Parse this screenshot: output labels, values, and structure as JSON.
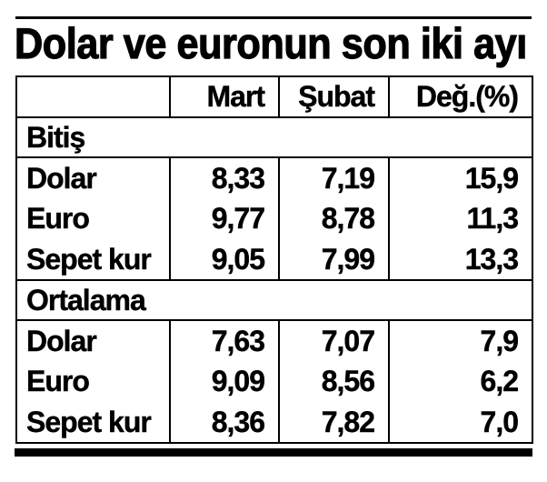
{
  "title": "Dolar ve euronun son iki ayı",
  "colors": {
    "text": "#000000",
    "background": "#ffffff",
    "border": "#000000"
  },
  "table": {
    "columns": [
      "",
      "Mart",
      "Şubat",
      "Değ.(%)"
    ],
    "sections": [
      {
        "label": "Bitiş",
        "rows": [
          {
            "label": "Dolar",
            "mart": "8,33",
            "subat": "7,19",
            "deg": "15,9"
          },
          {
            "label": "Euro",
            "mart": "9,77",
            "subat": "8,78",
            "deg": "11,3"
          },
          {
            "label": "Sepet kur",
            "mart": "9,05",
            "subat": "7,99",
            "deg": "13,3"
          }
        ]
      },
      {
        "label": "Ortalama",
        "rows": [
          {
            "label": "Dolar",
            "mart": "7,63",
            "subat": "7,07",
            "deg": "7,9"
          },
          {
            "label": "Euro",
            "mart": "9,09",
            "subat": "8,56",
            "deg": "6,2"
          },
          {
            "label": "Sepet kur",
            "mart": "8,36",
            "subat": "7,82",
            "deg": "7,0"
          }
        ]
      }
    ]
  },
  "chart_data": {
    "type": "table",
    "title": "Dolar ve euronun son iki ayı",
    "columns": [
      "Mart",
      "Şubat",
      "Değ.(%)"
    ],
    "sections": [
      {
        "name": "Bitiş",
        "rows": [
          [
            "Dolar",
            8.33,
            7.19,
            15.9
          ],
          [
            "Euro",
            9.77,
            8.78,
            11.3
          ],
          [
            "Sepet kur",
            9.05,
            7.99,
            13.3
          ]
        ]
      },
      {
        "name": "Ortalama",
        "rows": [
          [
            "Dolar",
            7.63,
            7.07,
            7.9
          ],
          [
            "Euro",
            9.09,
            8.56,
            6.2
          ],
          [
            "Sepet kur",
            8.36,
            7.82,
            7.0
          ]
        ]
      }
    ],
    "notes": "Decimal comma formatting; section header rows span all columns; values right-aligned"
  }
}
